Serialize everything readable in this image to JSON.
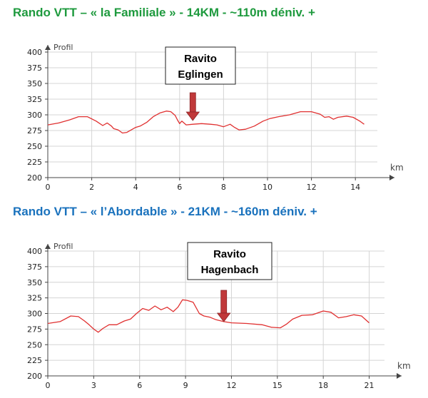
{
  "chart_data": [
    {
      "type": "line",
      "title": "Rando VTT – « la Familiale » - 14KM - ~110m déniv. +",
      "title_color": "#1e9a3e",
      "ylabel": "Profil",
      "xlabel": "km",
      "xlim": [
        0,
        15
      ],
      "ylim": [
        200,
        400
      ],
      "x_ticks": [
        0,
        2,
        4,
        6,
        8,
        10,
        12,
        14
      ],
      "y_ticks": [
        200,
        225,
        250,
        275,
        300,
        325,
        350,
        375,
        400
      ],
      "grid": true,
      "line_color": "#e03030",
      "series": [
        {
          "x": [
            0,
            0.5,
            1.0,
            1.4,
            1.8,
            2.2,
            2.5,
            2.7,
            2.9,
            3.0,
            3.2,
            3.4,
            3.6,
            3.8,
            4.0,
            4.2,
            4.5,
            4.8,
            5.1,
            5.4,
            5.6,
            5.8,
            5.9,
            6.0,
            6.1,
            6.3,
            6.6,
            7.0,
            7.4,
            7.7,
            8.0,
            8.3,
            8.5,
            8.7,
            9.0,
            9.4,
            9.8,
            10.1,
            10.5,
            11.0,
            11.5,
            12.0,
            12.4,
            12.6,
            12.8,
            13.0,
            13.2,
            13.6,
            13.9,
            14.2,
            14.4
          ],
          "y": [
            284,
            287,
            292,
            297,
            297,
            290,
            283,
            287,
            282,
            278,
            276,
            271,
            272,
            276,
            280,
            282,
            288,
            297,
            303,
            306,
            305,
            299,
            292,
            286,
            290,
            284,
            285,
            286,
            285,
            284,
            281,
            285,
            280,
            276,
            277,
            282,
            290,
            294,
            297,
            300,
            305,
            305,
            301,
            296,
            297,
            293,
            296,
            298,
            296,
            290,
            285
          ]
        }
      ],
      "annotation": {
        "line1": "Ravito",
        "line2": "Eglingen",
        "x": 6.6
      }
    },
    {
      "type": "line",
      "title": "Rando VTT – « l’Abordable » - 21KM - ~160m déniv. +",
      "title_color": "#1a72bd",
      "ylabel": "Profil",
      "xlabel": "km",
      "xlim": [
        0,
        22
      ],
      "ylim": [
        200,
        400
      ],
      "x_ticks": [
        0,
        3,
        6,
        9,
        12,
        15,
        18,
        21
      ],
      "y_ticks": [
        200,
        225,
        250,
        275,
        300,
        325,
        350,
        375,
        400
      ],
      "grid": true,
      "line_color": "#e03030",
      "series": [
        {
          "x": [
            0,
            0.8,
            1.5,
            2.0,
            2.4,
            2.7,
            3.0,
            3.3,
            3.6,
            4.0,
            4.5,
            5.0,
            5.4,
            5.8,
            6.2,
            6.6,
            7.0,
            7.4,
            7.8,
            8.2,
            8.5,
            8.8,
            9.1,
            9.5,
            9.9,
            10.2,
            10.6,
            11.0,
            11.5,
            12.0,
            13.0,
            14.0,
            14.6,
            15.2,
            15.6,
            16.0,
            16.6,
            17.3,
            18.0,
            18.5,
            19.0,
            19.5,
            20.0,
            20.5,
            21.0
          ],
          "y": [
            284,
            287,
            296,
            295,
            288,
            282,
            275,
            270,
            276,
            282,
            282,
            288,
            291,
            300,
            308,
            305,
            312,
            306,
            310,
            303,
            310,
            322,
            321,
            318,
            300,
            296,
            294,
            290,
            287,
            285,
            284,
            282,
            278,
            277,
            283,
            291,
            297,
            298,
            304,
            302,
            293,
            295,
            298,
            296,
            285
          ]
        }
      ],
      "annotation": {
        "line1": "Ravito",
        "line2": "Hagenbach",
        "x": 11.5
      }
    }
  ]
}
